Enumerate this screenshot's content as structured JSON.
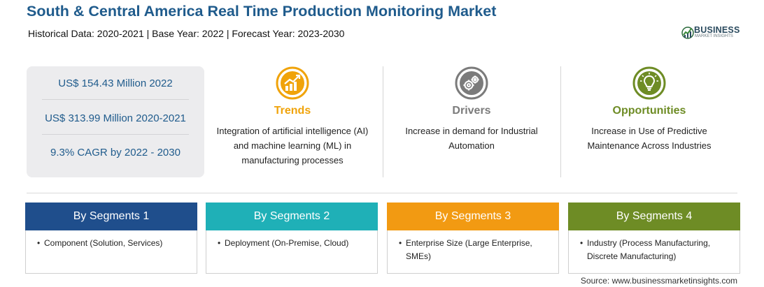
{
  "header": {
    "title": "South & Central America Real Time Production Monitoring Market",
    "subtitle": "Historical Data: 2020-2021 | Base Year: 2022 | Forecast Year: 2023-2030"
  },
  "logo": {
    "brand": "BUSINESS",
    "tagline": "MARKET INSIGHTS"
  },
  "stats": [
    "US$ 154.43 Million 2022",
    "US$ 313.99 Million 2020-2021",
    "9.3% CAGR by 2022 - 2030"
  ],
  "columns": [
    {
      "icon": "trend-chart-icon",
      "heading": "Trends",
      "color": "#f0a30a",
      "text": "Integration of artificial intelligence (AI) and machine learning (ML) in manufacturing processes"
    },
    {
      "icon": "gears-icon",
      "heading": "Drivers",
      "color": "#7b7b7b",
      "text": "Increase in demand for Industrial Automation"
    },
    {
      "icon": "lightbulb-icon",
      "heading": "Opportunities",
      "color": "#6e8c25",
      "text": "Increase in Use of Predictive Maintenance Across Industries"
    }
  ],
  "segments": [
    {
      "title": "By Segments 1",
      "color": "#1f4e8c",
      "bullet": "•",
      "text": "Component (Solution, Services)"
    },
    {
      "title": "By Segments 2",
      "color": "#1fb0b7",
      "bullet": "•",
      "text": "Deployment (On-Premise, Cloud)"
    },
    {
      "title": "By Segments 3",
      "color": "#f29a12",
      "bullet": "•",
      "text": "Enterprise Size (Large Enterprise, SMEs)"
    },
    {
      "title": "By Segments 4",
      "color": "#6e8c25",
      "bullet": "•",
      "text": "Industry (Process Manufacturing, Discrete Manufacturing)"
    }
  ],
  "source": "Source: www.businessmarketinsights.com"
}
